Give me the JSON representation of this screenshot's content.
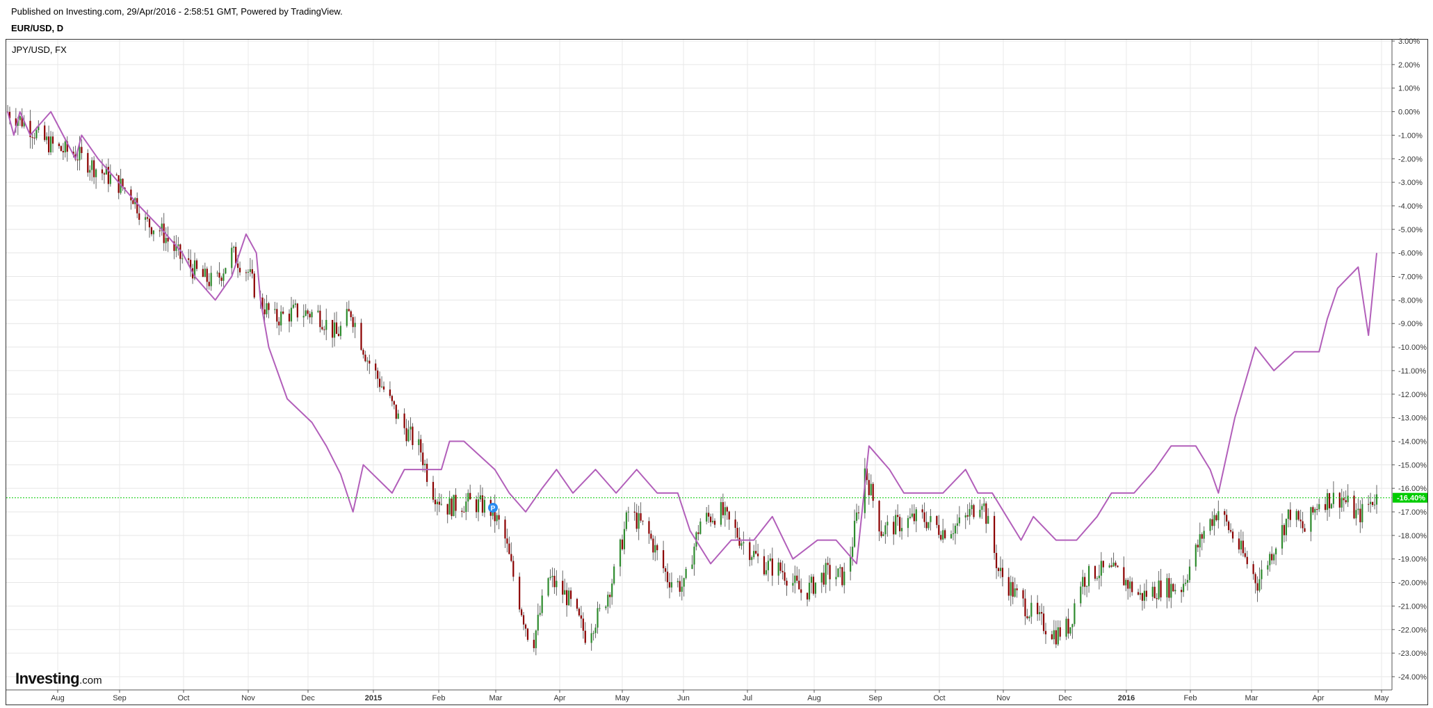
{
  "header": {
    "published": "Published on Investing.com, 29/Apr/2016 - 2:58:51 GMT, Powered by TradingView.",
    "symbol": "EUR/USD, D"
  },
  "legend": {
    "compare_label": "JPY/USD, FX"
  },
  "logo": {
    "main": "Investing",
    "suffix": ".com"
  },
  "current_badge": "-16.40%",
  "chart_data": {
    "type": "line",
    "title": "",
    "xlabel": "",
    "ylabel": "",
    "x_ticks": [
      "Aug",
      "Sep",
      "Oct",
      "Nov",
      "Dec",
      "2015",
      "Feb",
      "Mar",
      "Apr",
      "May",
      "Jun",
      "Jul",
      "Aug",
      "Sep",
      "Oct",
      "Nov",
      "Dec",
      "2016",
      "Feb",
      "Mar",
      "Apr",
      "May"
    ],
    "y_ticks": [
      "3.00%",
      "2.00%",
      "1.00%",
      "0.00%",
      "-1.00%",
      "-2.00%",
      "-3.00%",
      "-4.00%",
      "-5.00%",
      "-6.00%",
      "-7.00%",
      "-8.00%",
      "-9.00%",
      "-10.00%",
      "-11.00%",
      "-12.00%",
      "-13.00%",
      "-14.00%",
      "-15.00%",
      "-16.00%",
      "-17.00%",
      "-18.00%",
      "-19.00%",
      "-20.00%",
      "-21.00%",
      "-22.00%",
      "-23.00%",
      "-24.00%"
    ],
    "ylim": [
      -24.6,
      3.2
    ],
    "grid": true,
    "colors": {
      "compare": "#b25fba",
      "up": "#2e8b2e",
      "down": "#8b0000",
      "last_line": "#00cc00"
    },
    "series": [
      {
        "name": "EUR/USD, D",
        "style": "candlestick",
        "x": [
          "2014-07-03",
          "2014-07-12",
          "2014-07-20",
          "2014-07-28",
          "2014-08-05",
          "2014-08-15",
          "2014-08-25",
          "2014-09-02",
          "2014-09-08",
          "2014-09-15",
          "2014-09-25",
          "2014-10-05",
          "2014-10-12",
          "2014-10-20",
          "2014-10-28",
          "2014-11-02",
          "2014-11-10",
          "2014-11-20",
          "2014-12-01",
          "2014-12-10",
          "2014-12-17",
          "2014-12-25",
          "2015-01-02",
          "2015-01-10",
          "2015-01-20",
          "2015-01-25",
          "2015-02-01",
          "2015-02-12",
          "2015-02-22",
          "2015-03-01",
          "2015-03-08",
          "2015-03-15",
          "2015-03-23",
          "2015-04-01",
          "2015-04-10",
          "2015-04-18",
          "2015-04-25",
          "2015-05-01",
          "2015-05-10",
          "2015-05-20",
          "2015-05-28",
          "2015-06-05",
          "2015-06-15",
          "2015-06-25",
          "2015-07-05",
          "2015-07-15",
          "2015-07-25",
          "2015-08-05",
          "2015-08-15",
          "2015-08-24",
          "2015-09-01",
          "2015-09-10",
          "2015-09-20",
          "2015-10-01",
          "2015-10-10",
          "2015-10-20",
          "2015-10-28",
          "2015-11-05",
          "2015-11-15",
          "2015-11-25",
          "2015-12-02",
          "2015-12-06",
          "2015-12-15",
          "2015-12-25",
          "2016-01-05",
          "2016-01-15",
          "2016-01-25",
          "2016-02-05",
          "2016-02-12",
          "2016-02-22",
          "2016-03-02",
          "2016-03-10",
          "2016-03-18",
          "2016-03-25",
          "2016-04-01",
          "2016-04-12",
          "2016-04-20",
          "2016-04-28"
        ],
        "y": [
          0.0,
          -0.5,
          -1.2,
          -1.6,
          -1.8,
          -2.4,
          -3.0,
          -3.6,
          -4.7,
          -5.0,
          -6.2,
          -7.0,
          -7.3,
          -6.0,
          -6.8,
          -8.0,
          -8.8,
          -8.5,
          -8.6,
          -9.5,
          -8.5,
          -10.5,
          -11.8,
          -13.2,
          -14.4,
          -16.0,
          -16.8,
          -16.6,
          -16.8,
          -17.8,
          -20.5,
          -22.8,
          -19.8,
          -20.6,
          -22.2,
          -21.2,
          -19.4,
          -17.0,
          -17.8,
          -19.8,
          -20.2,
          -17.4,
          -17.0,
          -18.2,
          -19.2,
          -19.5,
          -20.5,
          -19.6,
          -19.8,
          -15.2,
          -17.8,
          -17.5,
          -17.2,
          -17.8,
          -17.5,
          -16.4,
          -19.5,
          -20.5,
          -21.5,
          -22.2,
          -21.8,
          -20.0,
          -19.5,
          -19.6,
          -20.6,
          -20.2,
          -20.2,
          -17.8,
          -16.9,
          -18.5,
          -20.0,
          -18.5,
          -17.0,
          -17.8,
          -16.5,
          -16.4,
          -17.2,
          -16.4
        ]
      },
      {
        "name": "JPY/USD, FX",
        "style": "line",
        "x": [
          "2014-07-03",
          "2014-07-06",
          "2014-07-09",
          "2014-07-14",
          "2014-07-24",
          "2014-07-30",
          "2014-08-05",
          "2014-08-08",
          "2014-08-16",
          "2014-08-26",
          "2014-09-05",
          "2014-09-16",
          "2014-09-26",
          "2014-10-02",
          "2014-10-12",
          "2014-10-20",
          "2014-10-27",
          "2014-11-01",
          "2014-11-03",
          "2014-11-07",
          "2014-11-16",
          "2014-11-28",
          "2014-12-05",
          "2014-12-12",
          "2014-12-18",
          "2014-12-23",
          "2015-01-06",
          "2015-01-12",
          "2015-01-22",
          "2015-01-30",
          "2015-02-03",
          "2015-02-10",
          "2015-02-25",
          "2015-03-04",
          "2015-03-12",
          "2015-03-20",
          "2015-03-27",
          "2015-04-04",
          "2015-04-15",
          "2015-04-25",
          "2015-05-05",
          "2015-05-15",
          "2015-05-25",
          "2015-05-31",
          "2015-06-10",
          "2015-06-20",
          "2015-07-01",
          "2015-07-10",
          "2015-07-20",
          "2015-08-01",
          "2015-08-10",
          "2015-08-20",
          "2015-08-26",
          "2015-09-05",
          "2015-09-12",
          "2015-09-20",
          "2015-10-01",
          "2015-10-12",
          "2015-10-18",
          "2015-10-25",
          "2015-11-01",
          "2015-11-08",
          "2015-11-14",
          "2015-11-25",
          "2015-12-05",
          "2015-12-15",
          "2015-12-22",
          "2016-01-02",
          "2016-01-12",
          "2016-01-20",
          "2016-02-01",
          "2016-02-08",
          "2016-02-12",
          "2016-02-20",
          "2016-03-01",
          "2016-03-10",
          "2016-03-20",
          "2016-04-01",
          "2016-04-05",
          "2016-04-10",
          "2016-04-20",
          "2016-04-25",
          "2016-04-29"
        ],
        "y": [
          0.0,
          -1.0,
          0.0,
          -1.0,
          0.0,
          -1.0,
          -2.0,
          -1.0,
          -2.0,
          -3.0,
          -4.0,
          -5.0,
          -6.0,
          -7.0,
          -8.0,
          -7.0,
          -5.2,
          -6.0,
          -8.0,
          -10.0,
          -12.2,
          -13.2,
          -14.2,
          -15.4,
          -17.0,
          -15.0,
          -16.2,
          -15.2,
          -15.2,
          -15.2,
          -14.0,
          -14.0,
          -15.2,
          -16.2,
          -17.0,
          -16.0,
          -15.2,
          -16.2,
          -15.2,
          -16.2,
          -15.2,
          -16.2,
          -16.2,
          -17.8,
          -19.2,
          -18.2,
          -18.2,
          -17.2,
          -19.0,
          -18.2,
          -18.2,
          -19.2,
          -14.2,
          -15.2,
          -16.2,
          -16.2,
          -16.2,
          -15.2,
          -16.2,
          -16.2,
          -17.2,
          -18.2,
          -17.2,
          -18.2,
          -18.2,
          -17.2,
          -16.2,
          -16.2,
          -15.2,
          -14.2,
          -14.2,
          -15.2,
          -16.2,
          -13.0,
          -10.0,
          -11.0,
          -10.2,
          -10.2,
          -8.8,
          -7.5,
          -6.6,
          -9.5,
          -6.0
        ]
      }
    ]
  }
}
